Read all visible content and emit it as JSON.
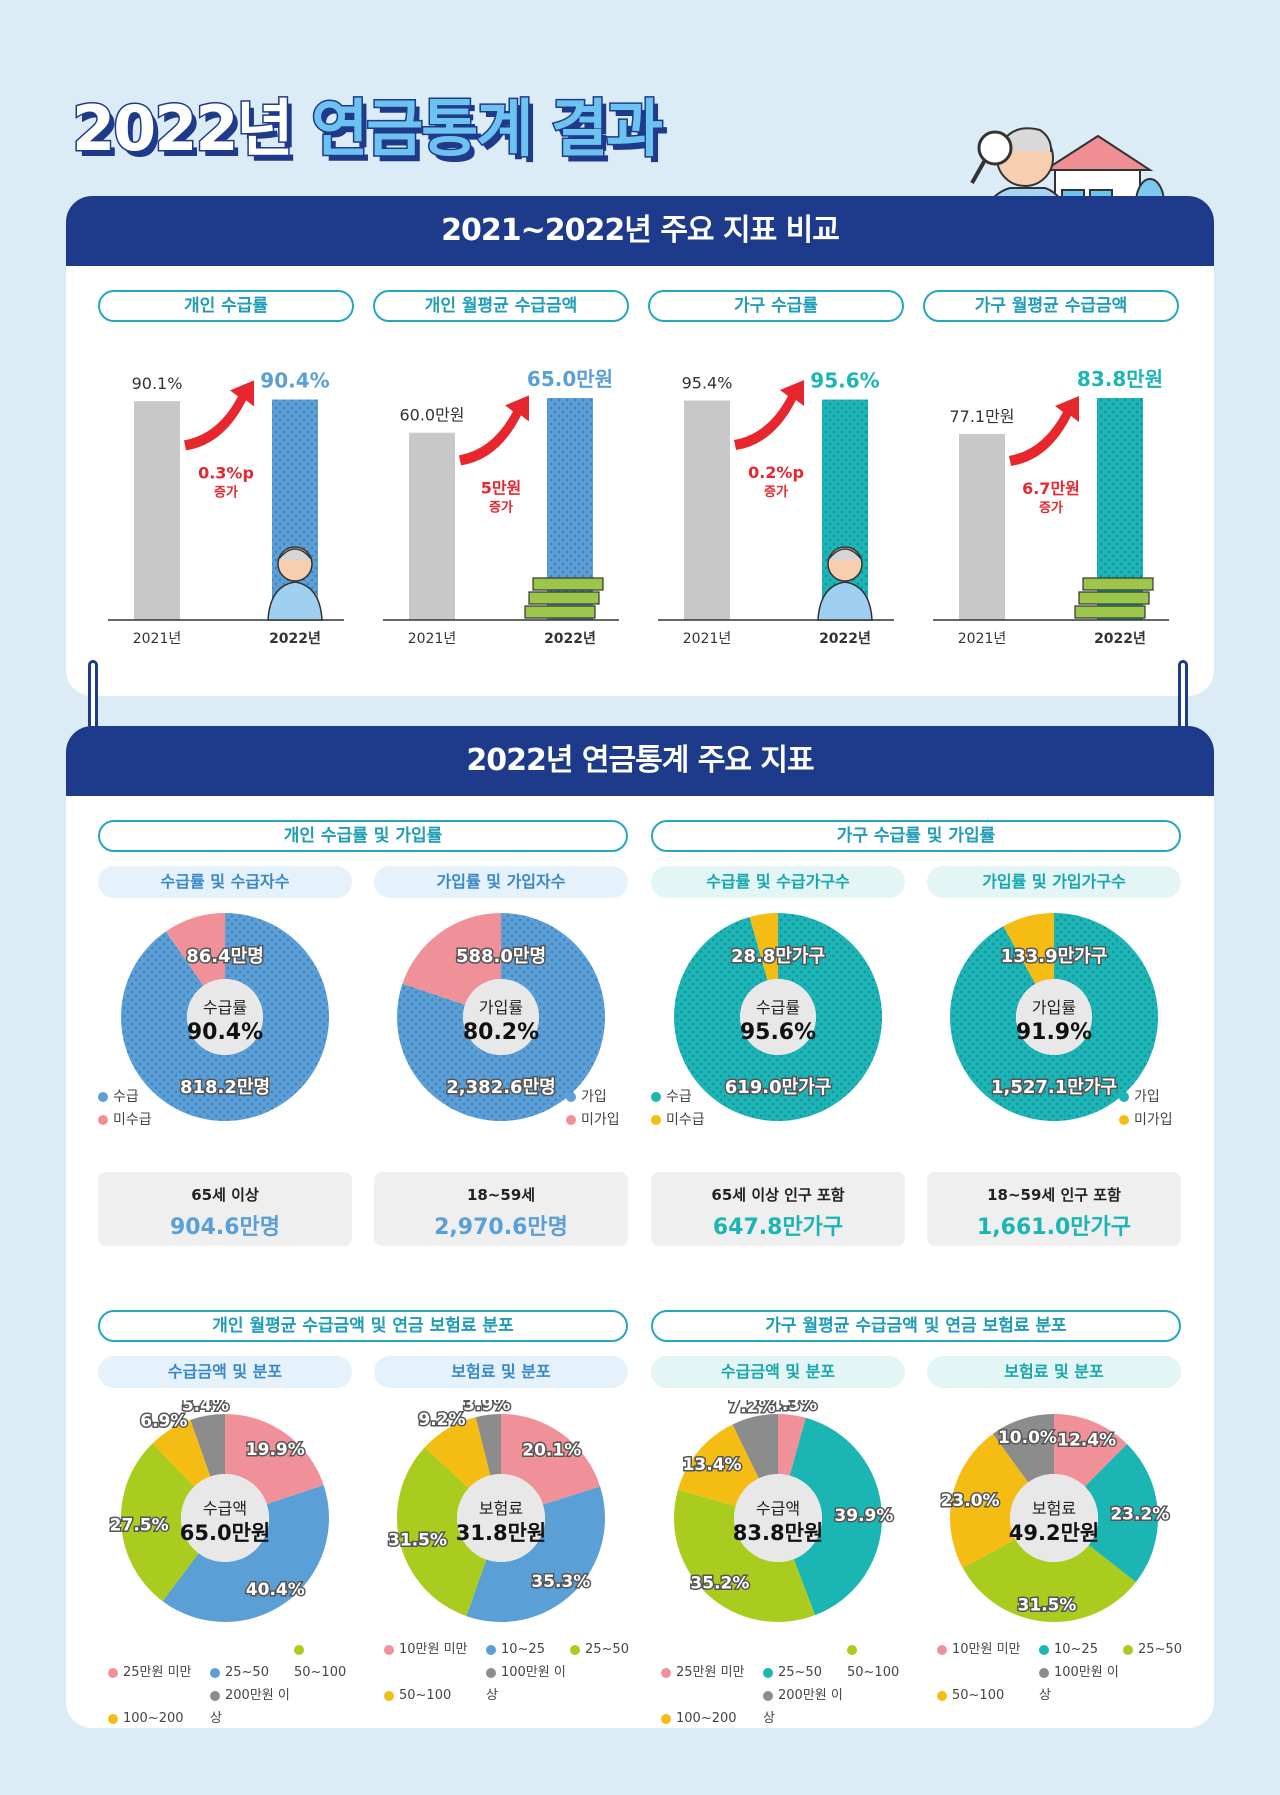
{
  "title": {
    "part1": "2022년",
    "part2": "연금통계 결과"
  },
  "section1": {
    "header": "2021~2022년 주요 지표 비교",
    "cards": [
      {
        "label": "개인 수급률",
        "year_prev": "2021년",
        "year_cur": "2022년",
        "prev_text": "90.1%",
        "cur_text": "90.4%",
        "change": "0.3%p",
        "change_label": "증가"
      },
      {
        "label": "개인 월평균 수급금액",
        "year_prev": "2021년",
        "year_cur": "2022년",
        "prev_text": "60.0만원",
        "cur_text": "65.0만원",
        "change": "5만원",
        "change_label": "증가"
      },
      {
        "label": "가구 수급률",
        "year_prev": "2021년",
        "year_cur": "2022년",
        "prev_text": "95.4%",
        "cur_text": "95.6%",
        "change": "0.2%p",
        "change_label": "증가"
      },
      {
        "label": "가구 월평균 수급금액",
        "year_prev": "2021년",
        "year_cur": "2022년",
        "prev_text": "77.1만원",
        "cur_text": "83.8만원",
        "change": "6.7만원",
        "change_label": "증가"
      }
    ]
  },
  "section2": {
    "header": "2022년 연금통계 주요 지표",
    "group_titles": [
      "개인 수급률 및 가입률",
      "가구 수급률 및 가입률",
      "개인 월평균 수급금액 및 연금 보험료 분포",
      "가구 월평균 수급금액 및 연금 보험료 분포"
    ],
    "donuts": [
      {
        "sub": "수급률 및 수급자수",
        "center_label": "수급률",
        "center_value": "90.4%",
        "top": "86.4만명",
        "bottom": "818.2만명",
        "legend": [
          "수급",
          "미수급"
        ],
        "box_label": "65세 이상",
        "box_value": "904.6만명"
      },
      {
        "sub": "가입률 및 가입자수",
        "center_label": "가입률",
        "center_value": "80.2%",
        "top": "588.0만명",
        "bottom": "2,382.6만명",
        "legend": [
          "가입",
          "미가입"
        ],
        "box_label": "18~59세",
        "box_value": "2,970.6만명"
      },
      {
        "sub": "수급률 및 수급가구수",
        "center_label": "수급률",
        "center_value": "95.6%",
        "top": "28.8만가구",
        "bottom": "619.0만가구",
        "legend": [
          "수급",
          "미수급"
        ],
        "box_label": "65세 이상 인구 포함",
        "box_value": "647.8만가구"
      },
      {
        "sub": "가입률 및 가입가구수",
        "center_label": "가입률",
        "center_value": "91.9%",
        "top": "133.9만가구",
        "bottom": "1,527.1만가구",
        "legend": [
          "가입",
          "미가입"
        ],
        "box_label": "18~59세 인구 포함",
        "box_value": "1,661.0만가구"
      }
    ],
    "dists": [
      {
        "sub": "수급금액 및 분포",
        "center_label": "수급액",
        "center_value": "65.0만원",
        "legend": [
          "25만원 미만",
          "25~50",
          "50~100",
          "100~200",
          "200만원 이상"
        ]
      },
      {
        "sub": "보험료 및 분포",
        "center_label": "보험료",
        "center_value": "31.8만원",
        "legend": [
          "10만원 미만",
          "10~25",
          "25~50",
          "50~100",
          "100만원 이상"
        ]
      },
      {
        "sub": "수급금액 및 분포",
        "center_label": "수급액",
        "center_value": "83.8만원",
        "legend": [
          "25만원 미만",
          "25~50",
          "50~100",
          "100~200",
          "200만원 이상"
        ]
      },
      {
        "sub": "보험료 및 분포",
        "center_label": "보험료",
        "center_value": "49.2만원",
        "legend": [
          "10만원 미만",
          "10~25",
          "25~50",
          "50~100",
          "100만원 이상"
        ]
      }
    ]
  },
  "colors": {
    "navy": "#1e3a8a",
    "blue": "#5a9fd6",
    "teal": "#1bb5b3",
    "pink": "#f0919a",
    "yellow": "#f5bd14",
    "green": "#a9cc1e",
    "gray": "#8c8c8c",
    "red": "#e8262e",
    "bar_gray": "#c8c8c8"
  },
  "chart_data": [
    {
      "type": "bar",
      "title": "개인 수급률",
      "categories": [
        "2021년",
        "2022년"
      ],
      "values": [
        90.1,
        90.4
      ]
    },
    {
      "type": "bar",
      "title": "개인 월평균 수급금액",
      "categories": [
        "2021년",
        "2022년"
      ],
      "values": [
        60.0,
        65.0
      ]
    },
    {
      "type": "bar",
      "title": "가구 수급률",
      "categories": [
        "2021년",
        "2022년"
      ],
      "values": [
        95.4,
        95.6
      ]
    },
    {
      "type": "bar",
      "title": "가구 월평균 수급금액",
      "categories": [
        "2021년",
        "2022년"
      ],
      "values": [
        77.1,
        83.8
      ]
    },
    {
      "type": "pie",
      "title": "수급률 및 수급자수",
      "categories": [
        "수급",
        "미수급"
      ],
      "values": [
        90.4,
        9.6
      ]
    },
    {
      "type": "pie",
      "title": "가입률 및 가입자수",
      "categories": [
        "가입",
        "미가입"
      ],
      "values": [
        80.2,
        19.8
      ]
    },
    {
      "type": "pie",
      "title": "수급률 및 수급가구수",
      "categories": [
        "수급",
        "미수급"
      ],
      "values": [
        95.6,
        4.4
      ]
    },
    {
      "type": "pie",
      "title": "가입률 및 가입가구수",
      "categories": [
        "가입",
        "미가입"
      ],
      "values": [
        91.9,
        8.1
      ]
    },
    {
      "type": "pie",
      "title": "수급금액 및 분포",
      "categories": [
        "25만원 미만",
        "25~50",
        "50~100",
        "100~200",
        "200만원 이상"
      ],
      "values": [
        19.9,
        40.4,
        27.5,
        6.9,
        5.4
      ]
    },
    {
      "type": "pie",
      "title": "보험료 및 분포",
      "categories": [
        "10만원 미만",
        "10~25",
        "25~50",
        "50~100",
        "100만원 이상"
      ],
      "values": [
        20.1,
        35.3,
        31.5,
        9.2,
        3.9
      ]
    },
    {
      "type": "pie",
      "title": "수급금액 및 분포",
      "categories": [
        "25만원 미만",
        "25~50",
        "50~100",
        "100~200",
        "200만원 이상"
      ],
      "values": [
        4.3,
        39.9,
        35.2,
        13.4,
        7.2
      ]
    },
    {
      "type": "pie",
      "title": "보험료 및 분포",
      "categories": [
        "10만원 미만",
        "10~25",
        "25~50",
        "50~100",
        "100만원 이상"
      ],
      "values": [
        12.4,
        23.2,
        31.5,
        23.0,
        10.0
      ]
    }
  ]
}
